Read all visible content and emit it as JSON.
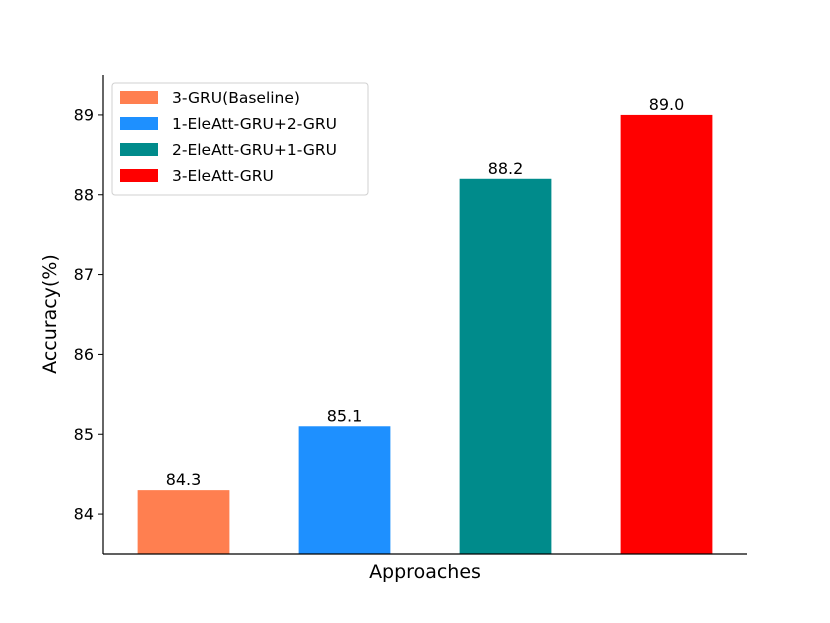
{
  "chart_data": {
    "type": "bar",
    "categories": [
      "3-GRU(Baseline)",
      "1-EleAtt-GRU+2-GRU",
      "2-EleAtt-GRU+1-GRU",
      "3-EleAtt-GRU"
    ],
    "values": [
      84.3,
      85.1,
      88.2,
      89.0
    ],
    "value_labels": [
      "84.3",
      "85.1",
      "88.2",
      "89.0"
    ],
    "colors": [
      "#ff7f50",
      "#1e90ff",
      "#008b8b",
      "#ff0000"
    ],
    "xlabel": "Approaches",
    "ylabel": "Accuracy(%)",
    "ylim": [
      83.5,
      89.5
    ],
    "yticks": [
      84,
      85,
      86,
      87,
      88,
      89
    ],
    "grid": false,
    "legend": {
      "placement": "top-left",
      "entries": [
        "3-GRU(Baseline)",
        "1-EleAtt-GRU+2-GRU",
        "2-EleAtt-GRU+1-GRU",
        "3-EleAtt-GRU"
      ]
    }
  }
}
